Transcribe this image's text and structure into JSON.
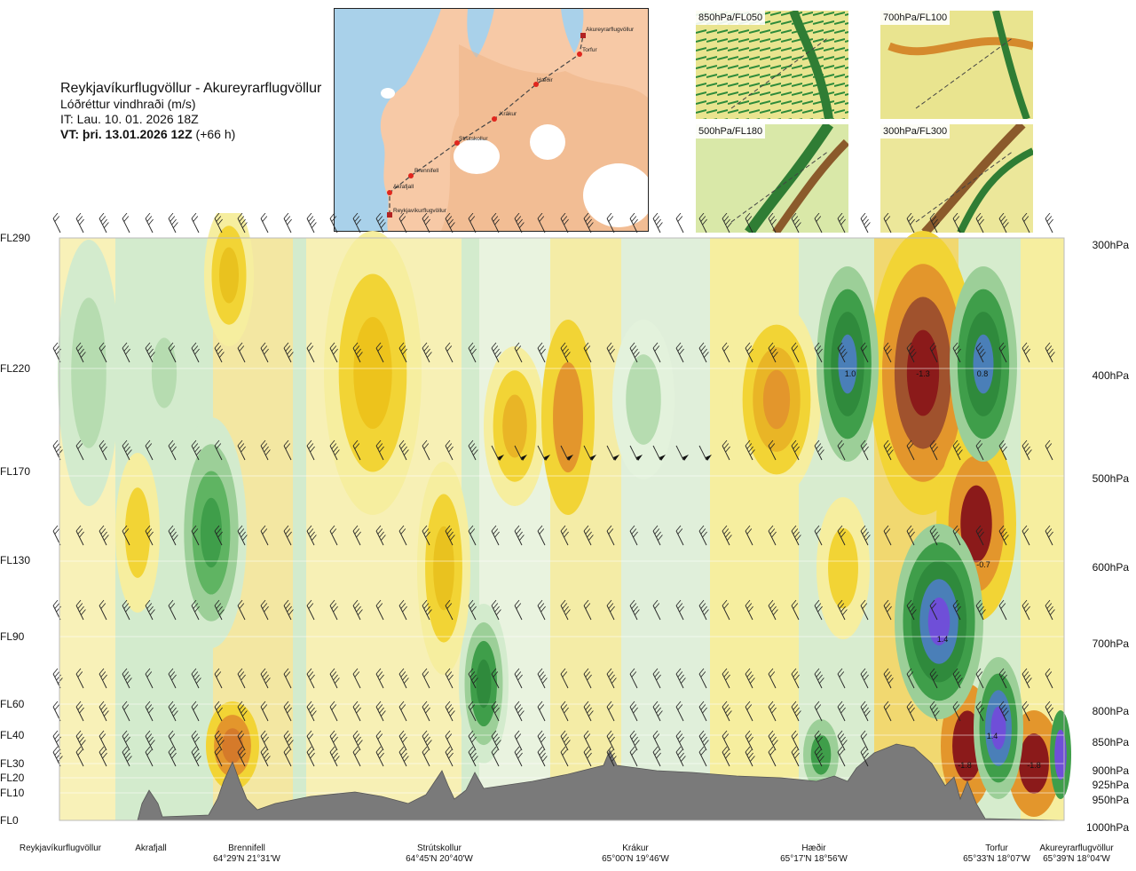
{
  "header": {
    "route": "Reykjavíkurflugvöllur - Akureyrarflugvöllur",
    "parameter": "Lóðréttur vindhraði (m/s)",
    "it": "IT: Lau. 10. 01. 2026 18Z",
    "vt_prefix": "VT: þri. 13.01.2026 12Z",
    "vt_suffix": " (+66 h)"
  },
  "map": {
    "waypoints": [
      "Akureyrarflugvöllur",
      "Torfur",
      "Hæðir",
      "Krákur",
      "Strútskollur",
      "Brennifell",
      "Akrafjall",
      "Reykjavíkurflugvöllur"
    ],
    "colors": {
      "sea": "#9ecae1",
      "land": "#f5b98e",
      "ice": "#ffffff",
      "route": "#444444",
      "point": "#e0261e"
    }
  },
  "thumbnails": [
    {
      "label": "850hPa/FL050"
    },
    {
      "label": "700hPa/FL100"
    },
    {
      "label": "500hPa/FL180"
    },
    {
      "label": "300hPa/FL300"
    }
  ],
  "chart_data": {
    "type": "heatmap",
    "title": "Reykjavíkurflugvöllur - Akureyrarflugvöllur",
    "quantity": "Lóðréttur vindhraði (m/s)",
    "y_levels": [
      {
        "fl": "FL290",
        "hpa": "300hPa"
      },
      {
        "fl": "FL220",
        "hpa": "400hPa"
      },
      {
        "fl": "FL170",
        "hpa": "500hPa"
      },
      {
        "fl": "FL130",
        "hpa": "600hPa"
      },
      {
        "fl": "FL90",
        "hpa": "700hPa"
      },
      {
        "fl": "FL60",
        "hpa": "800hPa"
      },
      {
        "fl": "FL40",
        "hpa": "850hPa"
      },
      {
        "fl": "FL30",
        "hpa": "900hPa"
      },
      {
        "fl": "FL20",
        "hpa": "925hPa"
      },
      {
        "fl": "FL10",
        "hpa": "950hPa"
      },
      {
        "fl": "FL0",
        "hpa": "1000hPa"
      }
    ],
    "x_locations": [
      {
        "name": "Reykjavíkurflugvöllur",
        "coord": ""
      },
      {
        "name": "Akrafjall",
        "coord": ""
      },
      {
        "name": "Brennifell",
        "coord": "64°29'N 21°31'W"
      },
      {
        "name": "Strútskollur",
        "coord": "64°45'N 20°40'W"
      },
      {
        "name": "Krákur",
        "coord": "65°00'N 19°46'W"
      },
      {
        "name": "Hæðir",
        "coord": "65°17'N 18°56'W"
      },
      {
        "name": "Torfur",
        "coord": "65°33'N 18°07'W"
      },
      {
        "name": "Akureyrarflugvöllur",
        "coord": "65°39'N 18°04'W"
      }
    ],
    "labels": [
      {
        "text": "1.0"
      },
      {
        "text": "-1.3"
      },
      {
        "text": "0.8"
      },
      {
        "text": "-0.7"
      },
      {
        "text": "1.4"
      },
      {
        "text": "1.4"
      },
      {
        "text": "-1.8"
      },
      {
        "text": "-1.8"
      }
    ],
    "colors": {
      "down_strong": "#8b1a1a",
      "down_mod": "#e3962c",
      "down_weak": "#f2d435",
      "down_faint": "#f7efaa",
      "up_faint": "#d3ebcd",
      "up_weak": "#9ccf98",
      "up_mod": "#3f9e4a",
      "up_strong": "#4a7fb8",
      "up_extreme": "#6f4fd8",
      "terrain": "#7a7a7a"
    }
  }
}
